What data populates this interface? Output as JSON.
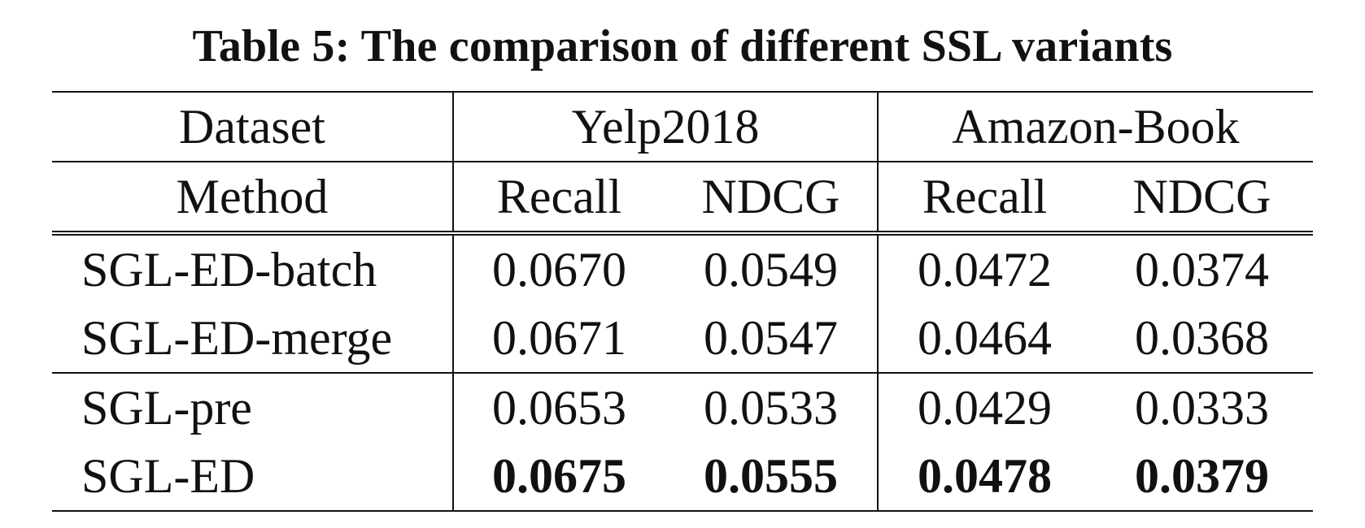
{
  "caption": "Table 5: The comparison of different SSL variants",
  "header": {
    "dataset_label": "Dataset",
    "method_label": "Method",
    "datasets": [
      "Yelp2018",
      "Amazon-Book"
    ],
    "metrics": [
      "Recall",
      "NDCG",
      "Recall",
      "NDCG"
    ]
  },
  "rows": [
    {
      "method": "SGL-ED-batch",
      "values": [
        "0.0670",
        "0.0549",
        "0.0472",
        "0.0374"
      ]
    },
    {
      "method": "SGL-ED-merge",
      "values": [
        "0.0671",
        "0.0547",
        "0.0464",
        "0.0368"
      ]
    },
    {
      "method": "SGL-pre",
      "values": [
        "0.0653",
        "0.0533",
        "0.0429",
        "0.0333"
      ]
    },
    {
      "method": "SGL-ED",
      "values": [
        "0.0675",
        "0.0555",
        "0.0478",
        "0.0379"
      ]
    }
  ]
}
